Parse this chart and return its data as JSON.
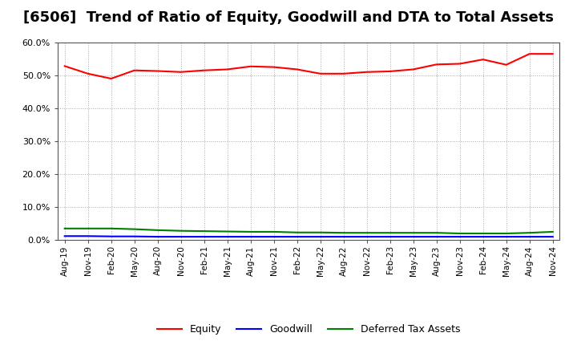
{
  "title": "[6506]  Trend of Ratio of Equity, Goodwill and DTA to Total Assets",
  "x_labels": [
    "Aug-19",
    "Nov-19",
    "Feb-20",
    "May-20",
    "Aug-20",
    "Nov-20",
    "Feb-21",
    "May-21",
    "Aug-21",
    "Nov-21",
    "Feb-22",
    "May-22",
    "Aug-22",
    "Nov-22",
    "Feb-23",
    "May-23",
    "Aug-23",
    "Nov-23",
    "Feb-24",
    "May-24",
    "Aug-24",
    "Nov-24"
  ],
  "equity": [
    52.8,
    50.5,
    49.0,
    51.5,
    51.3,
    51.0,
    51.5,
    51.8,
    52.7,
    52.5,
    51.8,
    50.5,
    50.5,
    51.0,
    51.2,
    51.8,
    53.3,
    53.5,
    54.8,
    53.2,
    56.5,
    56.5
  ],
  "goodwill": [
    1.2,
    1.2,
    1.1,
    1.1,
    1.0,
    1.0,
    1.0,
    1.0,
    1.0,
    1.0,
    1.0,
    1.0,
    1.0,
    1.0,
    1.0,
    1.0,
    1.0,
    1.0,
    1.0,
    1.0,
    1.0,
    1.0
  ],
  "dta": [
    3.5,
    3.5,
    3.5,
    3.3,
    3.0,
    2.8,
    2.7,
    2.6,
    2.5,
    2.5,
    2.3,
    2.3,
    2.2,
    2.2,
    2.2,
    2.2,
    2.2,
    2.0,
    2.0,
    2.0,
    2.2,
    2.5
  ],
  "equity_color": "#ff0000",
  "goodwill_color": "#0000ff",
  "dta_color": "#008000",
  "background_color": "#ffffff",
  "plot_bg_color": "#ffffff",
  "grid_color": "#aaaaaa",
  "ylim": [
    0,
    60
  ],
  "yticks": [
    0,
    10,
    20,
    30,
    40,
    50,
    60
  ],
  "title_fontsize": 13,
  "legend_labels": [
    "Equity",
    "Goodwill",
    "Deferred Tax Assets"
  ]
}
